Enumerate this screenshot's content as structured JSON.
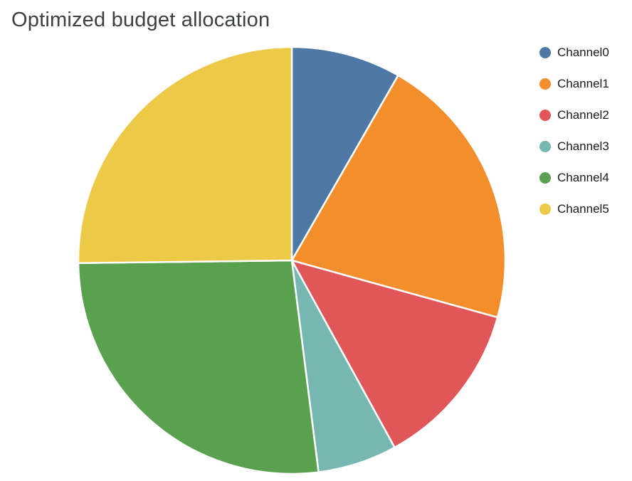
{
  "chart_data": {
    "type": "pie",
    "title": "Optimized budget allocation",
    "categories": [
      "Channel0",
      "Channel1",
      "Channel2",
      "Channel3",
      "Channel4",
      "Channel5"
    ],
    "values": [
      8.3,
      21.0,
      12.7,
      6.0,
      26.8,
      25.2
    ],
    "colors": [
      "#4e79a7",
      "#f28e2b",
      "#e15759",
      "#76b7b2",
      "#59a14f",
      "#edc948"
    ],
    "legend": {
      "position": "right",
      "entries": [
        "Channel0",
        "Channel1",
        "Channel2",
        "Channel3",
        "Channel4",
        "Channel5"
      ]
    },
    "start_angle_deg": 0,
    "direction": "clockwise",
    "slice_border_color": "#ffffff",
    "title_color": "#3c4043",
    "background_color": "#ffffff"
  }
}
